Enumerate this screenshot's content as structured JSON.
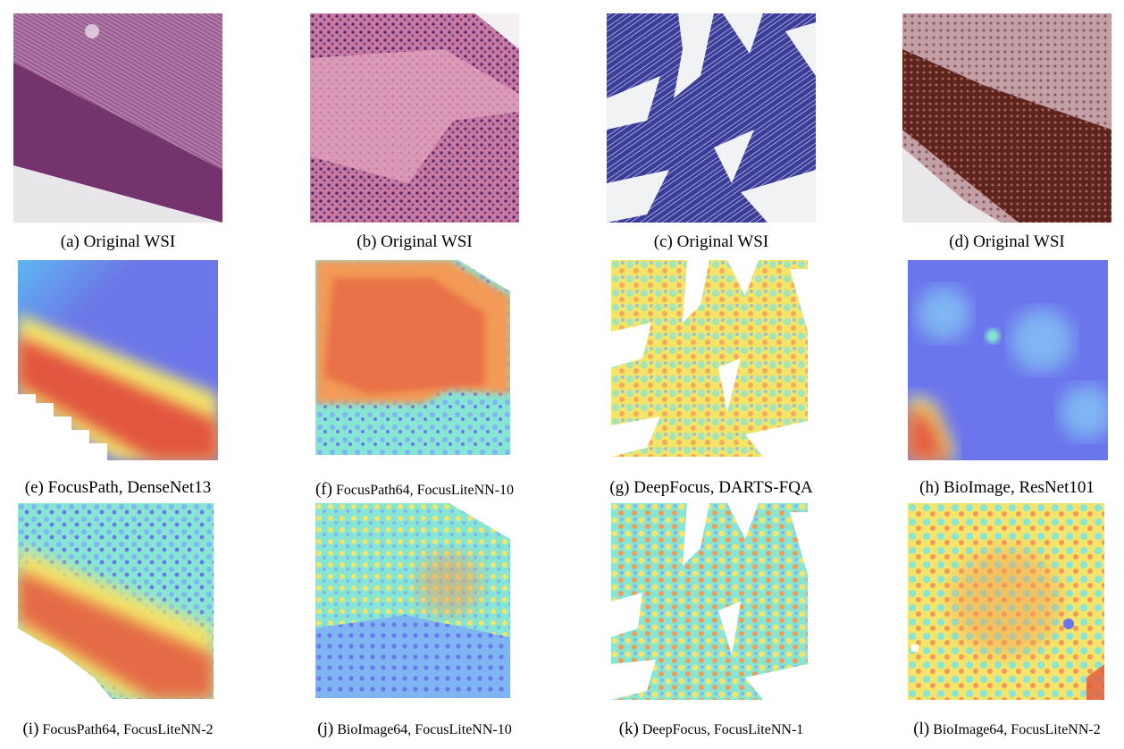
{
  "figure": {
    "panels": [
      {
        "id": "a",
        "caption_label": "(a)",
        "caption_text": "Original WSI",
        "kind": "wsi",
        "scheme": "he-purple"
      },
      {
        "id": "b",
        "caption_label": "(b)",
        "caption_text": "Original WSI",
        "kind": "wsi",
        "scheme": "he-pink"
      },
      {
        "id": "c",
        "caption_label": "(c)",
        "caption_text": "Original WSI",
        "kind": "wsi",
        "scheme": "blue-stain"
      },
      {
        "id": "d",
        "caption_label": "(d)",
        "caption_text": "Original WSI",
        "kind": "wsi",
        "scheme": "brown-stain"
      },
      {
        "id": "e",
        "caption_label": "(e)",
        "caption_text": "FocusPath, DenseNet13",
        "kind": "heatmap"
      },
      {
        "id": "f",
        "caption_label": "(f)",
        "caption_text": "FocusPath64, FocusLiteNN-10",
        "kind": "heatmap"
      },
      {
        "id": "g",
        "caption_label": "(g)",
        "caption_text": "DeepFocus, DARTS-FQA",
        "kind": "heatmap"
      },
      {
        "id": "h",
        "caption_label": "(h)",
        "caption_text": "BioImage, ResNet101",
        "kind": "heatmap"
      },
      {
        "id": "i",
        "caption_label": "(i)",
        "caption_text": "FocusPath64, FocusLiteNN-2",
        "kind": "heatmap"
      },
      {
        "id": "j",
        "caption_label": "(j)",
        "caption_text": "BioImage64, FocusLiteNN-10",
        "kind": "heatmap"
      },
      {
        "id": "k",
        "caption_label": "(k)",
        "caption_text": "DeepFocus, FocusLiteNN-1",
        "kind": "heatmap"
      },
      {
        "id": "l",
        "caption_label": "(l)",
        "caption_text": "BioImage64, FocusLiteNN-2",
        "kind": "heatmap"
      }
    ],
    "colors": {
      "jet_red": "#e2563f",
      "jet_orange": "#f29a57",
      "jet_yellow": "#f3e46b",
      "jet_cyan": "#86e6d3",
      "jet_lightblue": "#7fb5f2",
      "jet_blue": "#6b75ec",
      "he_purple": "#8c3f86",
      "he_pink": "#d98bb0",
      "stain_blue": "#2c2f8c",
      "stain_brown": "#5e241c"
    }
  }
}
